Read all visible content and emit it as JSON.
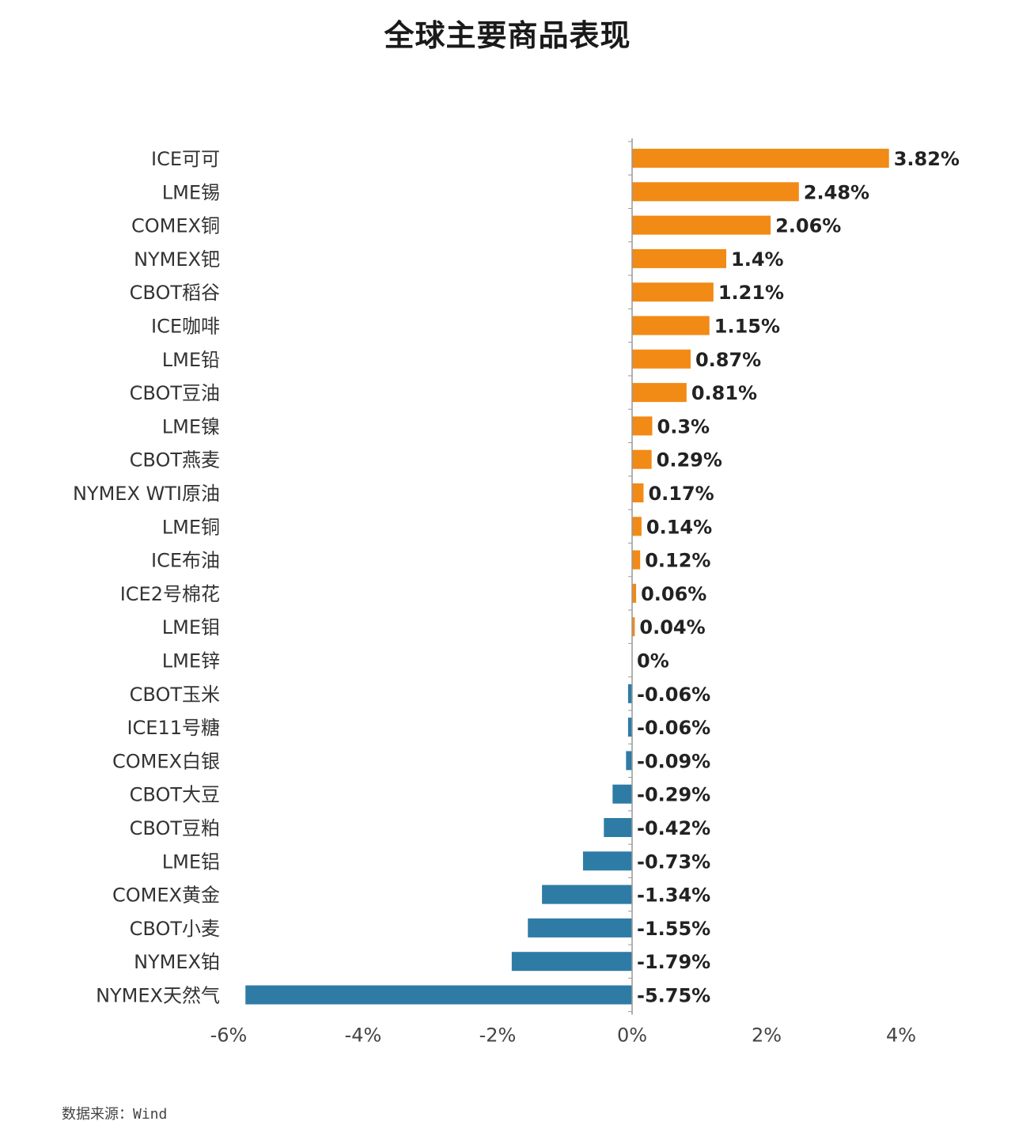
{
  "chart_data": {
    "type": "bar",
    "orientation": "horizontal",
    "title": "全球主要商品表现",
    "xlabel": "",
    "ylabel": "",
    "xlim": [
      -6,
      4
    ],
    "x_ticks": [
      "-6%",
      "-4%",
      "-2%",
      "0%",
      "2%",
      "4%"
    ],
    "tick_values": [
      -6,
      -4,
      -2,
      0,
      2,
      4
    ],
    "grid": false,
    "colors": {
      "positive": "#F28A16",
      "negative": "#2E7BA6"
    },
    "categories": [
      "ICE可可",
      "LME锡",
      "COMEX铜",
      "NYMEX钯",
      "CBOT稻谷",
      "ICE咖啡",
      "LME铅",
      "CBOT豆油",
      "LME镍",
      "CBOT燕麦",
      "NYMEX WTI原油",
      "LME铜",
      "ICE布油",
      "ICE2号棉花",
      "LME钼",
      "LME锌",
      "CBOT玉米",
      "ICE11号糖",
      "COMEX白银",
      "CBOT大豆",
      "CBOT豆粕",
      "LME铝",
      "COMEX黄金",
      "CBOT小麦",
      "NYMEX铂",
      "NYMEX天然气"
    ],
    "values": [
      3.82,
      2.48,
      2.06,
      1.4,
      1.21,
      1.15,
      0.87,
      0.81,
      0.3,
      0.29,
      0.17,
      0.14,
      0.12,
      0.06,
      0.04,
      0,
      -0.06,
      -0.06,
      -0.09,
      -0.29,
      -0.42,
      -0.73,
      -1.34,
      -1.55,
      -1.79,
      -5.75
    ],
    "value_labels": [
      "3.82%",
      "2.48%",
      "2.06%",
      "1.4%",
      "1.21%",
      "1.15%",
      "0.87%",
      "0.81%",
      "0.3%",
      "0.29%",
      "0.17%",
      "0.14%",
      "0.12%",
      "0.06%",
      "0.04%",
      "0%",
      "-0.06%",
      "-0.06%",
      "-0.09%",
      "-0.29%",
      "-0.42%",
      "-0.73%",
      "-1.34%",
      "-1.55%",
      "-1.79%",
      "-5.75%"
    ],
    "source": "数据来源：Wind"
  }
}
